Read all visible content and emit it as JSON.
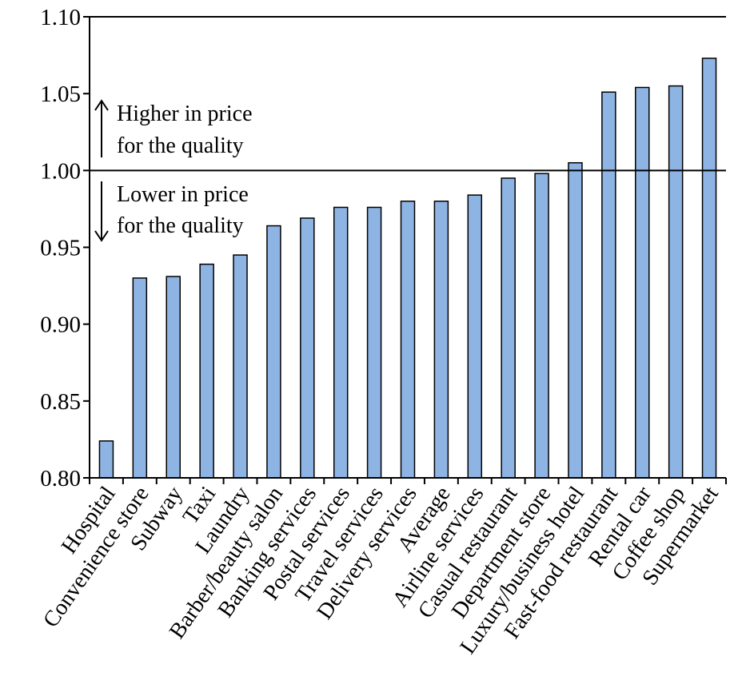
{
  "chart_data": {
    "type": "bar",
    "title": "",
    "xlabel": "",
    "ylabel": "",
    "ylim": [
      0.8,
      1.1
    ],
    "yticks": [
      "0.80",
      "0.85",
      "0.90",
      "0.95",
      "1.00",
      "1.05",
      "1.10"
    ],
    "reference_line": 1.0,
    "categories": [
      "Hospital",
      "Convenience store",
      "Subway",
      "Taxi",
      "Laundry",
      "Barber/beauty salon",
      "Banking services",
      "Postal services",
      "Travel services",
      "Delivery services",
      "Average",
      "Airline services",
      "Casual restaurant",
      "Department store",
      "Luxury/business hotel",
      "Fast-food restaurant",
      "Rental car",
      "Coffee shop",
      "Supermarket"
    ],
    "values": [
      0.824,
      0.93,
      0.931,
      0.939,
      0.945,
      0.964,
      0.969,
      0.976,
      0.976,
      0.98,
      0.98,
      0.984,
      0.995,
      0.998,
      1.005,
      1.051,
      1.054,
      1.055,
      1.073
    ],
    "bar_color": "#8EB4E3",
    "bar_stroke": "#000000",
    "grid": false,
    "annotations": {
      "higher_line1": "Higher in price",
      "higher_line2": "for the quality",
      "lower_line1": "Lower in price",
      "lower_line2": "for the quality"
    }
  }
}
